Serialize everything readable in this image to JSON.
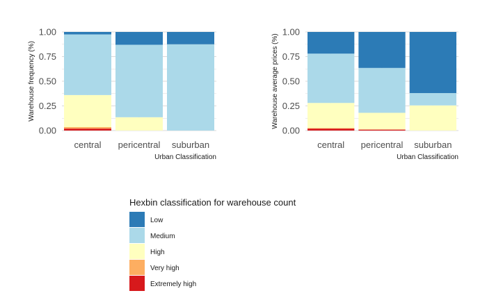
{
  "chart_data": [
    {
      "type": "bar",
      "stacked": true,
      "categories": [
        "central",
        "pericentral",
        "suburban"
      ],
      "xlabel": "Urban Classification",
      "ylabel": "Warehouse frequency (%)",
      "ylim": [
        0,
        1
      ],
      "yticks": [
        "0.00",
        "0.25",
        "0.50",
        "0.75",
        "1.00"
      ],
      "grid": true,
      "series": [
        {
          "name": "Extremely high",
          "values": [
            0.02,
            0.0,
            0.0
          ]
        },
        {
          "name": "Very high",
          "values": [
            0.015,
            0.0,
            0.0
          ]
        },
        {
          "name": "High",
          "values": [
            0.325,
            0.135,
            0.0
          ]
        },
        {
          "name": "Medium",
          "values": [
            0.615,
            0.735,
            0.875
          ]
        },
        {
          "name": "Low",
          "values": [
            0.025,
            0.13,
            0.125
          ]
        }
      ]
    },
    {
      "type": "bar",
      "stacked": true,
      "categories": [
        "central",
        "pericentral",
        "suburban"
      ],
      "xlabel": "Urban Classification",
      "ylabel": "Warehouse average prices (%)",
      "ylim": [
        0,
        1
      ],
      "yticks": [
        "0.00",
        "0.25",
        "0.50",
        "0.75",
        "1.00"
      ],
      "grid": true,
      "series": [
        {
          "name": "Extremely high",
          "values": [
            0.02,
            0.01,
            0.0
          ]
        },
        {
          "name": "Very high",
          "values": [
            0.005,
            0.0,
            0.0
          ]
        },
        {
          "name": "High",
          "values": [
            0.255,
            0.17,
            0.255
          ]
        },
        {
          "name": "Medium",
          "values": [
            0.5,
            0.455,
            0.125
          ]
        },
        {
          "name": "Low",
          "values": [
            0.22,
            0.365,
            0.62
          ]
        }
      ]
    }
  ],
  "legend": {
    "title": "Hexbin classification for warehouse count",
    "position": "bottom",
    "items": [
      {
        "label": "Low",
        "color": "#2C7BB6"
      },
      {
        "label": "Medium",
        "color": "#ABD9E9"
      },
      {
        "label": "High",
        "color": "#FFFFBF"
      },
      {
        "label": "Very high",
        "color": "#FDAE61"
      },
      {
        "label": "Extremely high",
        "color": "#D7191C"
      }
    ]
  },
  "colors": {
    "Low": "#2C7BB6",
    "Medium": "#ABD9E9",
    "High": "#FFFFBF",
    "Very high": "#FDAE61",
    "Extremely high": "#D7191C",
    "grid": "#d9d9d9"
  }
}
